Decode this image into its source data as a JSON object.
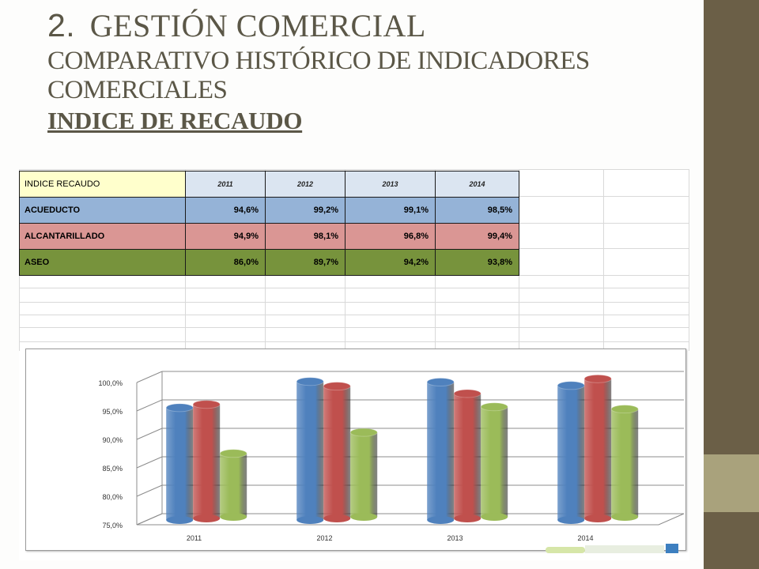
{
  "title": {
    "number": "2.",
    "line1": "GESTIÓN COMERCIAL",
    "line2": "COMPARATIVO HISTÓRICO DE INDICADORES",
    "line3": "COMERCIALES",
    "line4": "INDICE DE RECAUDO"
  },
  "table": {
    "header_label": "INDICE  RECAUDO",
    "years": [
      "2011",
      "2012",
      "2013",
      "2014"
    ],
    "rows": [
      {
        "label": "ACUEDUCTO",
        "values": [
          "94,6%",
          "99,2%",
          "99,1%",
          "98,5%"
        ]
      },
      {
        "label": "ALCANTARILLADO",
        "values": [
          "94,9%",
          "98,1%",
          "96,8%",
          "99,4%"
        ]
      },
      {
        "label": "ASEO",
        "values": [
          "86,0%",
          "89,7%",
          "94,2%",
          "93,8%"
        ]
      }
    ]
  },
  "colors": {
    "acueducto": "#4f81bd",
    "alcantarillado": "#c0504d",
    "aseo": "#9bbb59",
    "sidebar": "#6b5f47",
    "sidebar_accent": "#a9a27c",
    "title_text": "#5b5747"
  },
  "chart_data": {
    "type": "bar",
    "style": "3d-cylinder",
    "categories": [
      "2011",
      "2012",
      "2013",
      "2014"
    ],
    "series": [
      {
        "name": "ACUEDUCTO",
        "values": [
          94.6,
          99.2,
          99.1,
          98.5
        ]
      },
      {
        "name": "ALCANTARILLADO",
        "values": [
          94.9,
          98.1,
          96.8,
          99.4
        ]
      },
      {
        "name": "ASEO",
        "values": [
          86.0,
          89.7,
          94.2,
          93.8
        ]
      }
    ],
    "ylim": [
      75,
      100
    ],
    "yticks": [
      "75,0%",
      "80,0%",
      "85,0%",
      "90,0%",
      "95,0%",
      "100,0%"
    ],
    "title": "",
    "xlabel": "",
    "ylabel": "",
    "grid": true,
    "legend": "none"
  }
}
